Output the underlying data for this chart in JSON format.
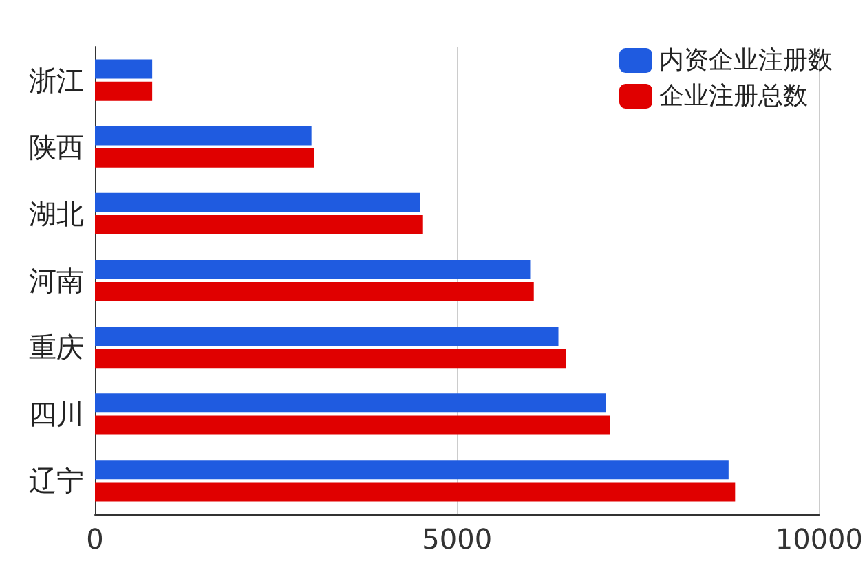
{
  "chart_data": {
    "type": "bar",
    "orientation": "horizontal",
    "categories": [
      "浙江",
      "陕西",
      "湖北",
      "河南",
      "重庆",
      "四川",
      "辽宁"
    ],
    "series": [
      {
        "name": "内资企业注册数",
        "color": "#1f5be0",
        "values": [
          790,
          2990,
          4490,
          6010,
          6400,
          7060,
          8750
        ]
      },
      {
        "name": "企业注册总数",
        "color": "#e00000",
        "values": [
          790,
          3030,
          4530,
          6060,
          6500,
          7110,
          8840
        ]
      }
    ],
    "xlim": [
      0,
      10000
    ],
    "xticks": [
      0,
      5000,
      10000
    ],
    "grid": "x",
    "legend": "top right"
  }
}
